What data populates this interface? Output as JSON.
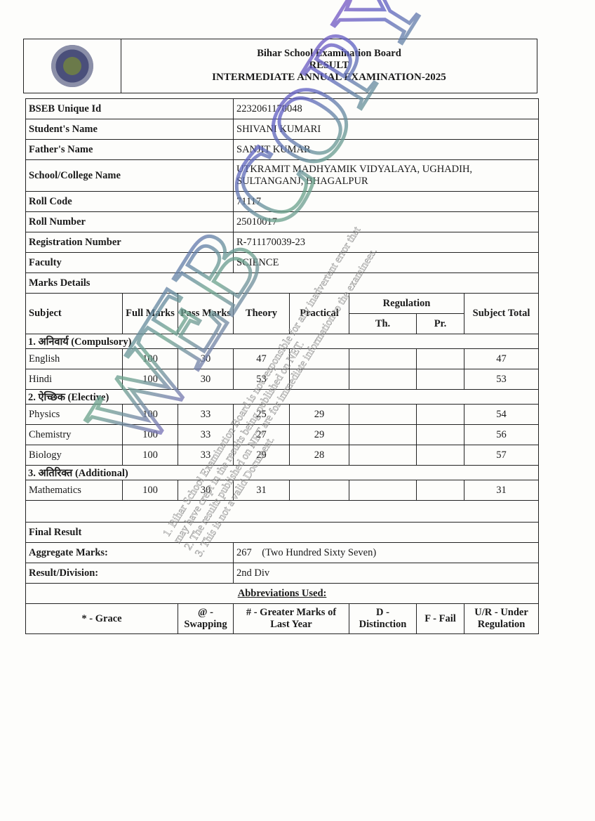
{
  "header": {
    "board": "Bihar School Examination Board",
    "title": "RESULT",
    "exam": "INTERMEDIATE ANNUAL EXAMINATION-2025"
  },
  "info": [
    {
      "label": "BSEB Unique Id",
      "value": "2232061170048"
    },
    {
      "label": "Student's Name",
      "value": "SHIVANI KUMARI"
    },
    {
      "label": "Father's Name",
      "value": "SANJIT KUMAR"
    },
    {
      "label": "School/College Name",
      "value": "UTKRAMIT MADHYAMIK VIDYALAYA, UGHADIH, SULTANGANJ, BHAGALPUR"
    },
    {
      "label": "Roll Code",
      "value": "71117"
    },
    {
      "label": "Roll Number",
      "value": "25010017"
    },
    {
      "label": "Registration Number",
      "value": "R-711170039-23"
    },
    {
      "label": "Faculty",
      "value": "SCIENCE"
    }
  ],
  "marks": {
    "title": "Marks Details",
    "headers": {
      "subject": "Subject",
      "full": "Full Marks",
      "pass": "Pass Marks",
      "theory": "Theory",
      "practical": "Practical",
      "regulation": "Regulation",
      "th": "Th.",
      "pr": "Pr.",
      "total": "Subject Total"
    },
    "sections": [
      {
        "name": "1. अनिवार्य (Compulsory)",
        "rows": [
          {
            "subject": "English",
            "full": "100",
            "pass": "30",
            "theory": "47",
            "practical": "",
            "th": "",
            "pr": "",
            "total": "47"
          },
          {
            "subject": "Hindi",
            "full": "100",
            "pass": "30",
            "theory": "53",
            "practical": "",
            "th": "",
            "pr": "",
            "total": "53"
          }
        ]
      },
      {
        "name": "2. ऐच्छिक (Elective)",
        "rows": [
          {
            "subject": "Physics",
            "full": "100",
            "pass": "33",
            "theory": "25",
            "practical": "29",
            "th": "",
            "pr": "",
            "total": "54"
          },
          {
            "subject": "Chemistry",
            "full": "100",
            "pass": "33",
            "theory": "27",
            "practical": "29",
            "th": "",
            "pr": "",
            "total": "56"
          },
          {
            "subject": "Biology",
            "full": "100",
            "pass": "33",
            "theory": "29",
            "practical": "28",
            "th": "",
            "pr": "",
            "total": "57"
          }
        ]
      },
      {
        "name": "3. अतिरिक्त (Additional)",
        "rows": [
          {
            "subject": "Mathematics",
            "full": "100",
            "pass": "30",
            "theory": "31",
            "practical": "",
            "th": "",
            "pr": "",
            "total": "31"
          }
        ]
      }
    ]
  },
  "final": {
    "title": "Final Result",
    "aggregate_label": "Aggregate Marks:",
    "aggregate_value": "267    (Two Hundred Sixty Seven)",
    "result_label": "Result/Division:",
    "result_value": "2nd Div"
  },
  "abbr": {
    "title": "Abbreviations Used:",
    "items": [
      "* - Grace",
      "@ - Swapping",
      "# - Greater Marks of Last Year",
      "D - Distinction",
      "F - Fail",
      "U/R - Under Regulation"
    ]
  },
  "watermark": {
    "big": "WEB COPY",
    "lines": [
      "1. Bihar School Examination Board is not responsible for any inadvertent error that",
      "may have crept in the results being published on NET.",
      "2. The results published on NET are for immediate information to the examinees.",
      "3. This is not a valid Document."
    ]
  }
}
